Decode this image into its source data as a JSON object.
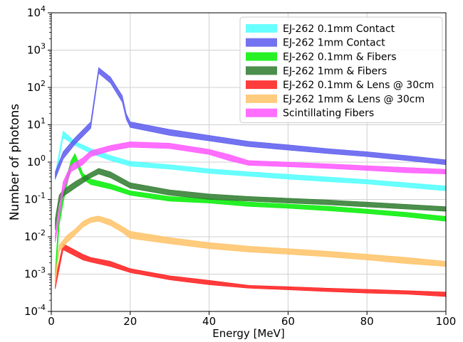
{
  "chart_data": {
    "type": "area",
    "title": "",
    "xlabel": "Energy [MeV]",
    "ylabel": "Number of photons",
    "xlim": [
      0,
      100
    ],
    "ylim": [
      0.0001,
      10000
    ],
    "yscale": "log",
    "grid": true,
    "legend_position": "top-right",
    "x_ticks": [
      "0",
      "20",
      "40",
      "60",
      "80",
      "100"
    ],
    "y_ticks": [
      {
        "base": "10",
        "exp": "-4"
      },
      {
        "base": "10",
        "exp": "-3"
      },
      {
        "base": "10",
        "exp": "-2"
      },
      {
        "base": "10",
        "exp": "-1"
      },
      {
        "base": "10",
        "exp": "0"
      },
      {
        "base": "10",
        "exp": "1"
      },
      {
        "base": "10",
        "exp": "2"
      },
      {
        "base": "10",
        "exp": "3"
      },
      {
        "base": "10",
        "exp": "4"
      }
    ],
    "series": [
      {
        "name": "EJ-262 0.1mm Contact",
        "color": "#4dffff",
        "x": [
          1,
          3,
          6,
          10,
          15,
          20,
          30,
          40,
          50,
          60,
          70,
          80,
          90,
          100
        ],
        "low": [
          0.33,
          4.5,
          2.8,
          1.7,
          1.1,
          0.78,
          0.65,
          0.5,
          0.42,
          0.35,
          0.3,
          0.26,
          0.21,
          0.17
        ],
        "high": [
          0.48,
          6.8,
          3.6,
          2.3,
          1.5,
          1.05,
          0.85,
          0.66,
          0.55,
          0.47,
          0.4,
          0.34,
          0.28,
          0.23
        ]
      },
      {
        "name": "EJ-262 1mm Contact",
        "color": "#5a5aee",
        "x": [
          1,
          3,
          6,
          10,
          12,
          15,
          18,
          19,
          20,
          30,
          40,
          50,
          60,
          70,
          80,
          90,
          100
        ],
        "low": [
          0.35,
          1.2,
          3.0,
          8.0,
          240,
          130,
          40,
          14,
          8.5,
          5.2,
          3.7,
          2.6,
          2.1,
          1.7,
          1.4,
          1.1,
          0.85
        ],
        "high": [
          0.55,
          1.9,
          4.5,
          12.0,
          340,
          190,
          60,
          20,
          12.0,
          7.5,
          5.2,
          3.6,
          2.9,
          2.3,
          1.9,
          1.5,
          1.15
        ]
      },
      {
        "name": "EJ-262 0.1mm & Fibers",
        "color": "#00ee00",
        "x": [
          1,
          2,
          3,
          4,
          5,
          6,
          8,
          10,
          15,
          20,
          30,
          40,
          50,
          60,
          70,
          80,
          90,
          100
        ],
        "low": [
          0.0005,
          0.02,
          0.08,
          0.25,
          0.7,
          1.1,
          0.35,
          0.25,
          0.19,
          0.13,
          0.09,
          0.08,
          0.065,
          0.058,
          0.05,
          0.042,
          0.034,
          0.026
        ],
        "high": [
          0.0012,
          0.05,
          0.14,
          0.45,
          1.1,
          1.7,
          0.5,
          0.35,
          0.26,
          0.17,
          0.12,
          0.105,
          0.085,
          0.075,
          0.066,
          0.055,
          0.045,
          0.035
        ]
      },
      {
        "name": "EJ-262 1mm & Fibers",
        "color": "#2d7a2d",
        "x": [
          1,
          2,
          3,
          6,
          10,
          12,
          15,
          20,
          30,
          40,
          50,
          60,
          70,
          80,
          90,
          100
        ],
        "low": [
          0.015,
          0.08,
          0.12,
          0.2,
          0.38,
          0.48,
          0.38,
          0.2,
          0.13,
          0.1,
          0.09,
          0.08,
          0.072,
          0.063,
          0.055,
          0.048
        ],
        "high": [
          0.03,
          0.13,
          0.18,
          0.3,
          0.52,
          0.68,
          0.55,
          0.28,
          0.18,
          0.14,
          0.12,
          0.108,
          0.097,
          0.085,
          0.074,
          0.064
        ]
      },
      {
        "name": "EJ-262 0.1mm & Lens @ 30cm",
        "color": "#ff1a1a",
        "x": [
          1,
          3,
          5,
          8,
          10,
          15,
          20,
          30,
          40,
          50,
          60,
          70,
          80,
          90,
          100
        ],
        "low": [
          0.0004,
          0.0045,
          0.0035,
          0.0024,
          0.0021,
          0.0016,
          0.0011,
          0.0007,
          0.00052,
          0.00042,
          0.00038,
          0.00034,
          0.00031,
          0.00029,
          0.00025
        ],
        "high": [
          0.0007,
          0.0065,
          0.005,
          0.0034,
          0.0028,
          0.0022,
          0.0014,
          0.0009,
          0.00068,
          0.0005,
          0.00046,
          0.00042,
          0.00039,
          0.00036,
          0.00033
        ]
      },
      {
        "name": "EJ-262 1mm & Lens @ 30cm",
        "color": "#ffc266",
        "x": [
          1,
          2,
          4,
          6,
          8,
          10,
          12,
          15,
          18,
          20,
          30,
          40,
          50,
          60,
          70,
          80,
          90,
          100
        ],
        "low": [
          0.0005,
          0.004,
          0.007,
          0.011,
          0.018,
          0.024,
          0.026,
          0.02,
          0.013,
          0.009,
          0.0065,
          0.0048,
          0.0039,
          0.0034,
          0.0029,
          0.0024,
          0.0019,
          0.0016
        ],
        "high": [
          0.001,
          0.006,
          0.011,
          0.016,
          0.026,
          0.033,
          0.036,
          0.029,
          0.019,
          0.014,
          0.0095,
          0.007,
          0.0056,
          0.0048,
          0.0041,
          0.0034,
          0.0028,
          0.0022
        ]
      },
      {
        "name": "Scintillating Fibers",
        "color": "#ff55ff",
        "x": [
          1,
          3,
          5,
          8,
          10,
          15,
          20,
          30,
          40,
          45,
          50,
          60,
          70,
          80,
          90,
          100
        ],
        "low": [
          0.007,
          0.15,
          0.55,
          0.85,
          1.4,
          2.0,
          2.5,
          2.3,
          1.6,
          1.1,
          0.82,
          0.75,
          0.68,
          0.6,
          0.52,
          0.48
        ],
        "high": [
          0.012,
          0.3,
          0.85,
          1.3,
          2.0,
          2.8,
          3.5,
          3.2,
          2.2,
          1.6,
          1.1,
          1.0,
          0.9,
          0.8,
          0.72,
          0.64
        ]
      }
    ]
  }
}
